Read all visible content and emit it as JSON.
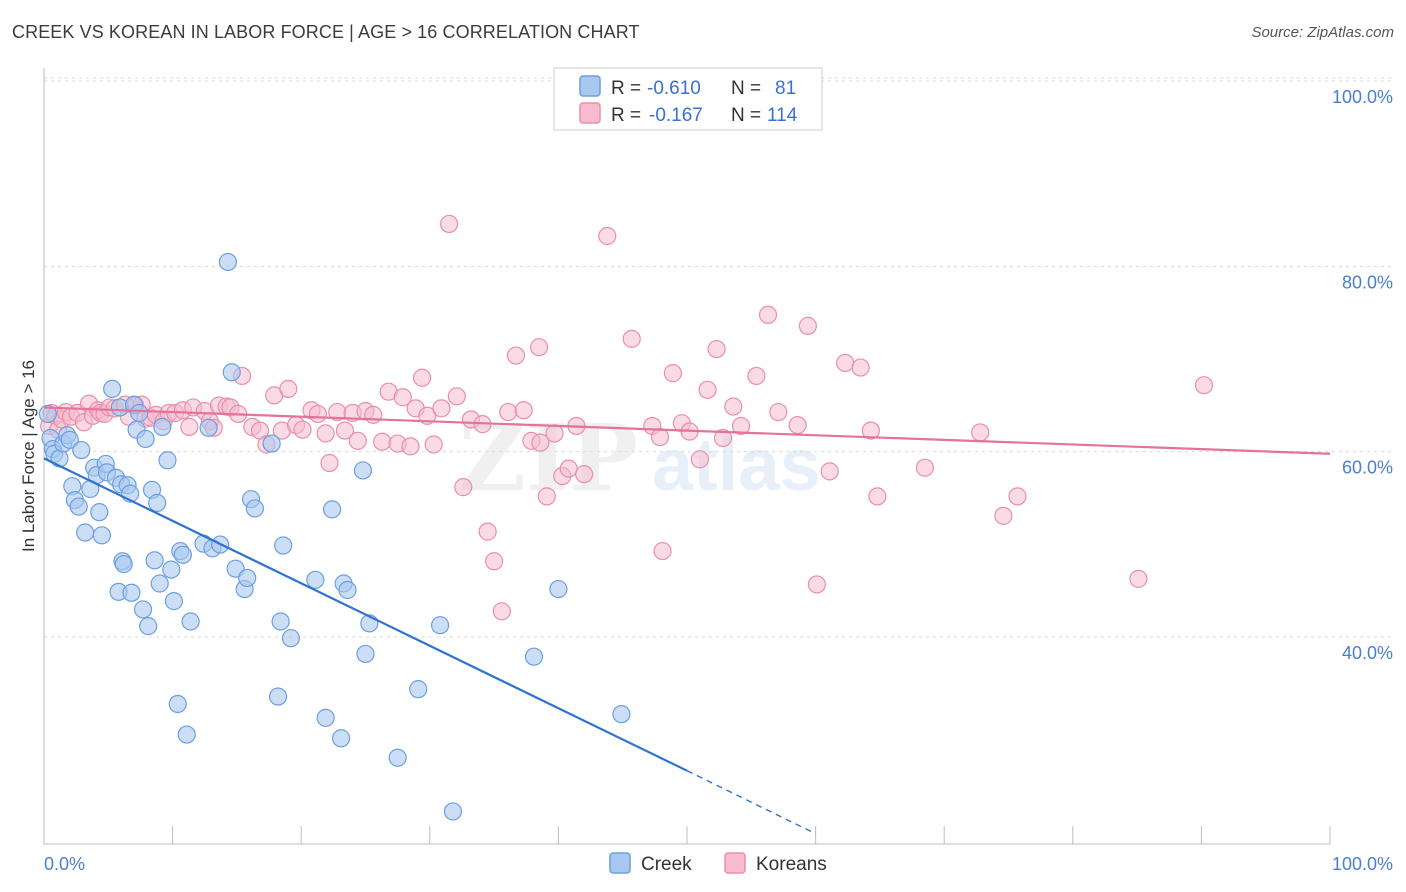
{
  "title": "CREEK VS KOREAN IN LABOR FORCE | AGE > 16 CORRELATION CHART",
  "source": "Source: ZipAtlas.com",
  "watermark": {
    "zip": "ZIP",
    "atlas": "atlas"
  },
  "colors": {
    "creek_fill": "#a9c8f0",
    "creek_stroke": "#6d9fe0",
    "creek_line": "#2e72d2",
    "korean_fill": "#f6bccd",
    "korean_stroke": "#ea8fab",
    "korean_line": "#e4729a",
    "grid": "#d8d8d8",
    "tick_text": "#4a7fd0"
  },
  "legend": {
    "rows": [
      {
        "r_label": "R =",
        "r_value": "-0.610",
        "n_label": "N =",
        "n_value": "81"
      },
      {
        "r_label": "R =",
        "r_value": "-0.167",
        "n_label": "N =",
        "n_value": "114"
      }
    ]
  },
  "bottom_legend": [
    "Creek",
    "Koreans"
  ],
  "chart_data": {
    "type": "scatter",
    "ylabel": "In Labor Force | Age > 16",
    "xlabel": "",
    "xlim": [
      0,
      100
    ],
    "ylim": [
      20,
      105
    ],
    "x_tick_labels": [
      "0.0%",
      "100.0%"
    ],
    "y_ticks": [
      40,
      60,
      80,
      100
    ],
    "y_tick_labels": [
      "40.0%",
      "60.0%",
      "80.0%",
      "100.0%"
    ],
    "grid": true,
    "legend_position": "top-center",
    "series": [
      {
        "name": "Creek",
        "stats": {
          "R": -0.61,
          "N": 81
        },
        "trend": {
          "x": [
            0,
            50
          ],
          "y": [
            61.0,
            27.3
          ],
          "dashed_to": {
            "x": 60,
            "y": 20.5
          }
        },
        "points": [
          [
            0.3,
            65.8
          ],
          [
            0.5,
            63.2
          ],
          [
            0.7,
            62.0
          ],
          [
            0.8,
            61.5
          ],
          [
            1.2,
            61.0
          ],
          [
            1.5,
            62.6
          ],
          [
            1.8,
            63.5
          ],
          [
            2.0,
            63.0
          ],
          [
            2.2,
            58.0
          ],
          [
            2.4,
            56.5
          ],
          [
            2.7,
            55.8
          ],
          [
            2.9,
            61.9
          ],
          [
            3.2,
            53.0
          ],
          [
            3.6,
            57.7
          ],
          [
            3.9,
            60.0
          ],
          [
            4.1,
            59.2
          ],
          [
            4.3,
            55.2
          ],
          [
            4.5,
            52.7
          ],
          [
            4.8,
            60.4
          ],
          [
            4.9,
            59.5
          ],
          [
            5.3,
            68.5
          ],
          [
            5.6,
            58.9
          ],
          [
            5.8,
            46.6
          ],
          [
            5.9,
            66.5
          ],
          [
            6.0,
            58.2
          ],
          [
            6.1,
            49.9
          ],
          [
            6.2,
            49.6
          ],
          [
            6.5,
            58.1
          ],
          [
            6.7,
            57.2
          ],
          [
            6.8,
            46.5
          ],
          [
            7.0,
            66.8
          ],
          [
            7.2,
            64.1
          ],
          [
            7.4,
            65.9
          ],
          [
            7.7,
            44.7
          ],
          [
            7.9,
            63.1
          ],
          [
            8.1,
            42.9
          ],
          [
            8.4,
            57.6
          ],
          [
            8.6,
            50.0
          ],
          [
            8.8,
            56.2
          ],
          [
            9.0,
            47.5
          ],
          [
            9.2,
            64.4
          ],
          [
            9.6,
            60.8
          ],
          [
            9.9,
            49.0
          ],
          [
            10.1,
            45.6
          ],
          [
            10.4,
            34.5
          ],
          [
            10.6,
            51.0
          ],
          [
            10.8,
            50.6
          ],
          [
            11.1,
            31.2
          ],
          [
            11.4,
            43.4
          ],
          [
            12.4,
            51.8
          ],
          [
            12.8,
            64.3
          ],
          [
            13.1,
            51.3
          ],
          [
            13.7,
            51.7
          ],
          [
            14.3,
            82.2
          ],
          [
            14.6,
            70.3
          ],
          [
            14.9,
            49.1
          ],
          [
            15.6,
            46.9
          ],
          [
            15.8,
            48.1
          ],
          [
            16.1,
            56.6
          ],
          [
            16.4,
            55.6
          ],
          [
            17.7,
            62.6
          ],
          [
            18.2,
            35.3
          ],
          [
            18.4,
            43.4
          ],
          [
            18.6,
            51.6
          ],
          [
            19.2,
            41.6
          ],
          [
            21.1,
            47.9
          ],
          [
            21.9,
            33.0
          ],
          [
            22.4,
            55.5
          ],
          [
            23.1,
            30.8
          ],
          [
            23.3,
            47.5
          ],
          [
            23.6,
            46.8
          ],
          [
            24.8,
            59.7
          ],
          [
            25.0,
            39.9
          ],
          [
            25.3,
            43.2
          ],
          [
            27.5,
            28.7
          ],
          [
            29.1,
            36.1
          ],
          [
            30.8,
            43.0
          ],
          [
            31.8,
            22.9
          ],
          [
            38.1,
            39.6
          ],
          [
            40.0,
            46.9
          ],
          [
            44.9,
            33.4
          ]
        ]
      },
      {
        "name": "Koreans",
        "stats": {
          "R": -0.167,
          "N": 114
        },
        "trend": {
          "x": [
            0,
            100
          ],
          "y": [
            66.5,
            61.5
          ]
        },
        "points": [
          [
            0.4,
            64.5
          ],
          [
            0.6,
            65.9
          ],
          [
            0.9,
            65.6
          ],
          [
            1.1,
            64.1
          ],
          [
            1.4,
            65.2
          ],
          [
            1.7,
            66.0
          ],
          [
            2.1,
            65.5
          ],
          [
            2.6,
            65.9
          ],
          [
            3.1,
            64.9
          ],
          [
            3.5,
            66.9
          ],
          [
            3.8,
            65.6
          ],
          [
            4.2,
            66.2
          ],
          [
            4.4,
            65.9
          ],
          [
            4.7,
            65.8
          ],
          [
            5.1,
            66.5
          ],
          [
            5.5,
            66.4
          ],
          [
            6.3,
            66.8
          ],
          [
            6.6,
            65.5
          ],
          [
            7.1,
            66.7
          ],
          [
            7.6,
            66.8
          ],
          [
            7.9,
            65.3
          ],
          [
            8.3,
            65.4
          ],
          [
            8.7,
            65.7
          ],
          [
            9.3,
            65.0
          ],
          [
            9.7,
            65.9
          ],
          [
            10.2,
            65.9
          ],
          [
            10.8,
            66.2
          ],
          [
            11.3,
            64.4
          ],
          [
            11.6,
            66.5
          ],
          [
            12.5,
            66.1
          ],
          [
            12.9,
            65.0
          ],
          [
            13.2,
            64.3
          ],
          [
            13.6,
            66.7
          ],
          [
            14.2,
            66.6
          ],
          [
            14.5,
            66.5
          ],
          [
            15.1,
            65.8
          ],
          [
            15.4,
            69.9
          ],
          [
            16.2,
            64.4
          ],
          [
            16.8,
            64.0
          ],
          [
            17.3,
            62.5
          ],
          [
            17.9,
            67.8
          ],
          [
            18.5,
            64.0
          ],
          [
            19.0,
            68.5
          ],
          [
            19.6,
            64.6
          ],
          [
            20.1,
            64.1
          ],
          [
            20.8,
            66.2
          ],
          [
            21.3,
            65.8
          ],
          [
            21.9,
            63.7
          ],
          [
            22.2,
            60.5
          ],
          [
            22.8,
            66.0
          ],
          [
            23.4,
            64.0
          ],
          [
            24.0,
            65.9
          ],
          [
            24.4,
            62.9
          ],
          [
            25.0,
            66.1
          ],
          [
            25.6,
            65.7
          ],
          [
            26.3,
            62.8
          ],
          [
            26.8,
            68.2
          ],
          [
            27.5,
            62.6
          ],
          [
            27.9,
            67.6
          ],
          [
            28.5,
            62.3
          ],
          [
            28.9,
            66.4
          ],
          [
            29.4,
            69.7
          ],
          [
            29.8,
            65.6
          ],
          [
            30.3,
            62.5
          ],
          [
            30.9,
            66.4
          ],
          [
            31.5,
            86.3
          ],
          [
            32.1,
            67.7
          ],
          [
            32.6,
            57.9
          ],
          [
            33.2,
            65.2
          ],
          [
            34.1,
            64.7
          ],
          [
            34.5,
            53.1
          ],
          [
            35.0,
            49.9
          ],
          [
            35.6,
            44.5
          ],
          [
            36.1,
            66.0
          ],
          [
            36.7,
            72.1
          ],
          [
            37.3,
            66.2
          ],
          [
            37.9,
            62.9
          ],
          [
            38.5,
            73.0
          ],
          [
            38.6,
            62.7
          ],
          [
            39.1,
            56.9
          ],
          [
            39.7,
            63.7
          ],
          [
            40.3,
            59.1
          ],
          [
            40.8,
            59.9
          ],
          [
            41.4,
            64.5
          ],
          [
            42.0,
            59.3
          ],
          [
            43.8,
            85.0
          ],
          [
            45.7,
            73.9
          ],
          [
            47.3,
            64.5
          ],
          [
            47.9,
            63.3
          ],
          [
            48.1,
            51.0
          ],
          [
            48.9,
            70.2
          ],
          [
            49.6,
            64.8
          ],
          [
            50.2,
            63.9
          ],
          [
            51.0,
            60.9
          ],
          [
            51.6,
            68.4
          ],
          [
            52.3,
            72.8
          ],
          [
            52.8,
            63.2
          ],
          [
            53.6,
            66.6
          ],
          [
            54.2,
            64.5
          ],
          [
            55.4,
            69.9
          ],
          [
            56.3,
            76.5
          ],
          [
            57.1,
            66.0
          ],
          [
            58.6,
            64.6
          ],
          [
            59.4,
            75.3
          ],
          [
            60.1,
            47.4
          ],
          [
            61.1,
            59.6
          ],
          [
            62.3,
            71.3
          ],
          [
            63.5,
            70.8
          ],
          [
            64.3,
            64.0
          ],
          [
            64.8,
            56.9
          ],
          [
            68.5,
            60.0
          ],
          [
            72.8,
            63.8
          ],
          [
            74.6,
            54.8
          ],
          [
            75.7,
            56.9
          ],
          [
            85.1,
            48.0
          ],
          [
            90.2,
            68.9
          ]
        ]
      }
    ]
  }
}
